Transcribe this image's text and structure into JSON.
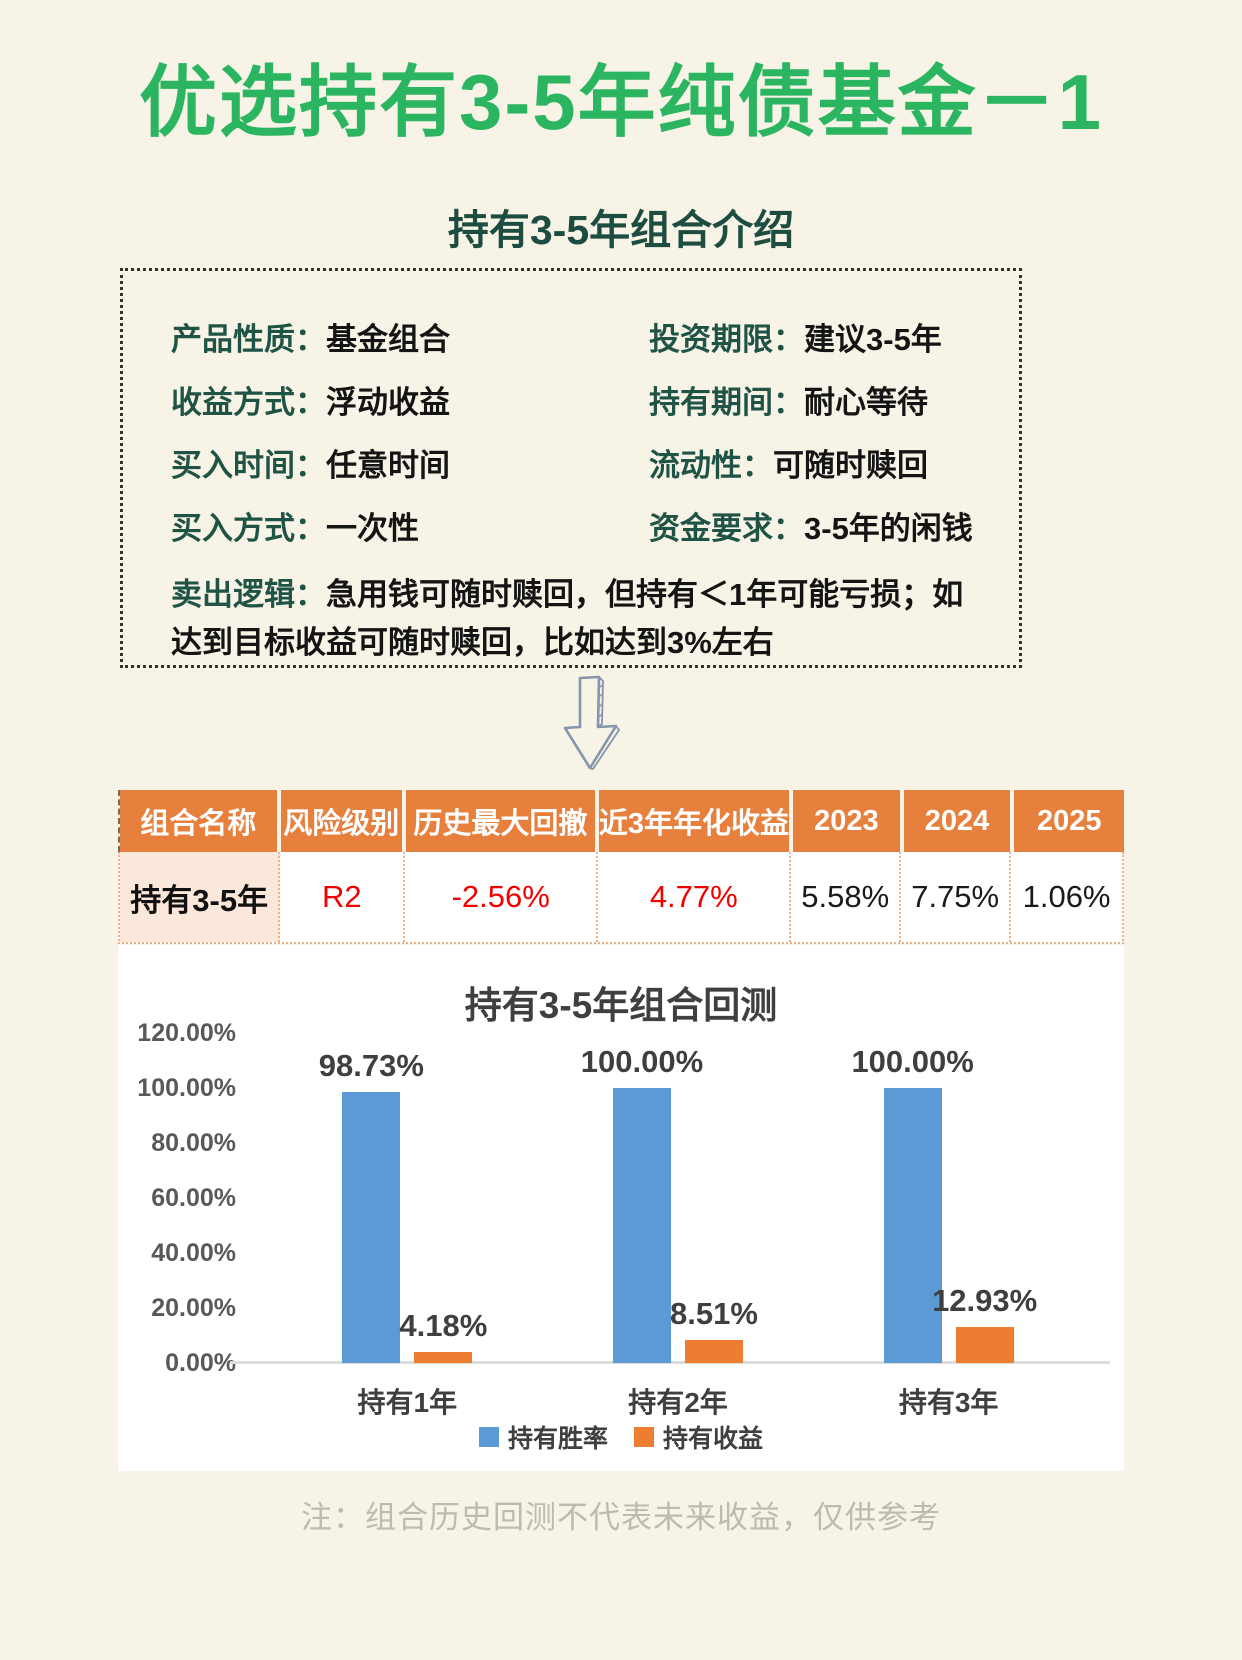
{
  "page": {
    "title": "优选持有3-5年纯债基金－1",
    "subtitle": "持有3-5年组合介绍",
    "footnote": "注：组合历史回测不代表未来收益，仅供参考"
  },
  "colors": {
    "background": "#F7F3E6",
    "title_green": "#2CB561",
    "dark_green": "#1E5345",
    "header_orange": "#E8803D",
    "name_cell_peach": "#FCE8DB",
    "highlight_red": "#F20000",
    "bar_blue": "#5B9AD5",
    "bar_orange": "#ED7D31"
  },
  "info_box": {
    "left": [
      {
        "label": "产品性质：",
        "value": "基金组合"
      },
      {
        "label": "收益方式：",
        "value": "浮动收益"
      },
      {
        "label": "买入时间：",
        "value": "任意时间"
      },
      {
        "label": "买入方式：",
        "value": "一次性"
      }
    ],
    "right": [
      {
        "label": "投资期限：",
        "value": "建议3-5年"
      },
      {
        "label": "持有期间：",
        "value": "耐心等待"
      },
      {
        "label": "流动性：",
        "value": "可随时赎回"
      },
      {
        "label": "资金要求：",
        "value": "3-5年的闲钱"
      }
    ],
    "sell_logic": {
      "label": "卖出逻辑：",
      "value": "急用钱可随时赎回，但持有＜1年可能亏损；如\n达到目标收益可随时赎回，比如达到3%左右"
    }
  },
  "table": {
    "headers": [
      "组合名称",
      "风险级别",
      "历史最大回撤",
      "近3年年化收益",
      "2023",
      "2024",
      "2025"
    ],
    "row": [
      "持有3-5年",
      "R2",
      "-2.56%",
      "4.77%",
      "5.58%",
      "7.75%",
      "1.06%"
    ]
  },
  "chart_data": {
    "type": "bar",
    "title": "持有3-5年组合回测",
    "categories": [
      "持有1年",
      "持有2年",
      "持有3年"
    ],
    "series": [
      {
        "name": "持有胜率",
        "values": [
          98.73,
          100.0,
          100.0
        ],
        "labels": [
          "98.73%",
          "100.00%",
          "100.00%"
        ],
        "color": "#5B9AD5"
      },
      {
        "name": "持有收益",
        "values": [
          4.18,
          8.51,
          12.93
        ],
        "labels": [
          "4.18%",
          "8.51%",
          "12.93%"
        ],
        "color": "#ED7D31"
      }
    ],
    "ylim": [
      0,
      120
    ],
    "yticks": [
      "120.00%",
      "100.00%",
      "80.00%",
      "60.00%",
      "40.00%",
      "20.00%",
      "0.00%"
    ],
    "grid": false,
    "legend_position": "bottom"
  }
}
